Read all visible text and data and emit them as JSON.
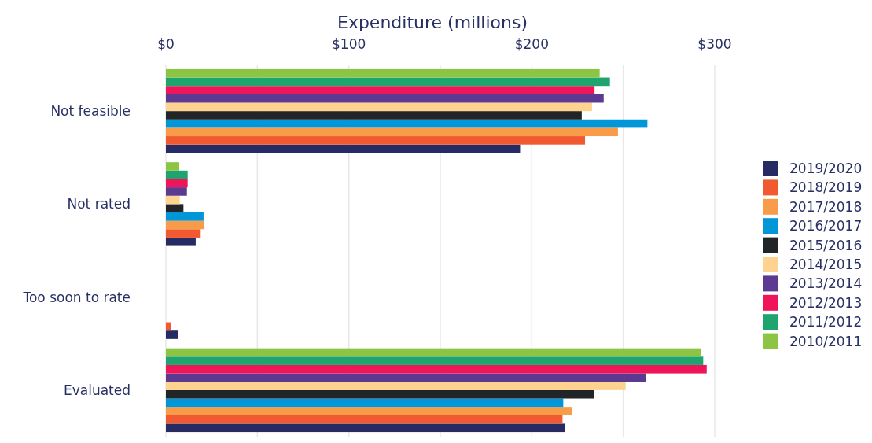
{
  "chart_data": {
    "type": "bar",
    "orientation": "horizontal",
    "xlabel": "Expenditure (millions)",
    "categories": [
      "Not feasible",
      "Not rated",
      "Too soon to rate",
      "Evaluated"
    ],
    "xlim": [
      0,
      300
    ],
    "xticks": [
      {
        "value": 0,
        "label": "$0"
      },
      {
        "value": 50,
        "label": null
      },
      {
        "value": 100,
        "label": "$100"
      },
      {
        "value": 150,
        "label": null
      },
      {
        "value": 200,
        "label": "$200"
      },
      {
        "value": 250,
        "label": null
      },
      {
        "value": 300,
        "label": "$300"
      }
    ],
    "grid": "x",
    "legend": "right",
    "series": [
      {
        "name": "2019/2020",
        "color": "#262b63",
        "values": [
          193.6,
          16.3,
          6.8,
          218.2
        ]
      },
      {
        "name": "2018/2019",
        "color": "#f15a31",
        "values": [
          229.1,
          18.6,
          2.7,
          216.8
        ]
      },
      {
        "name": "2017/2018",
        "color": "#f89c4a",
        "values": [
          247.1,
          21.1,
          null,
          221.9
        ]
      },
      {
        "name": "2016/2017",
        "color": "#0096d8",
        "values": [
          263.2,
          20.6,
          null,
          217.2
        ]
      },
      {
        "name": "2015/2016",
        "color": "#212527",
        "values": [
          227.3,
          9.6,
          null,
          234.1
        ]
      },
      {
        "name": "2014/2015",
        "color": "#fed38f",
        "values": [
          232.9,
          7.6,
          null,
          251.3
        ]
      },
      {
        "name": "2013/2014",
        "color": "#5c3a92",
        "values": [
          239.3,
          11.5,
          null,
          262.6
        ]
      },
      {
        "name": "2012/2013",
        "color": "#ee1559",
        "values": [
          234.3,
          11.9,
          null,
          295.6
        ]
      },
      {
        "name": "2011/2012",
        "color": "#1ea46e",
        "values": [
          242.7,
          11.9,
          null,
          293.7
        ]
      },
      {
        "name": "2010/2011",
        "color": "#8cc543",
        "values": [
          237.1,
          7.3,
          null,
          292.5
        ]
      }
    ]
  }
}
